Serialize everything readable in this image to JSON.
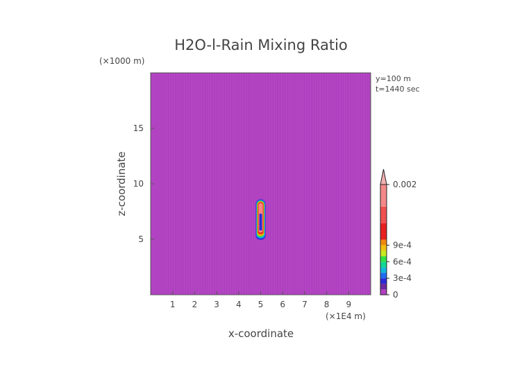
{
  "chart_data": {
    "type": "heatmap",
    "title": "H2O-l-Rain Mixing Ratio",
    "xlabel": "x-coordinate",
    "ylabel": "z-coordinate",
    "x_unit": "(×1E4 m)",
    "y_unit": "(×1000 m)",
    "annotations": [
      "y=100 m",
      "t=1440 sec"
    ],
    "xlim": [
      0,
      10
    ],
    "ylim": [
      0,
      20
    ],
    "x_ticks": [
      1,
      2,
      3,
      4,
      5,
      6,
      7,
      8,
      9
    ],
    "y_ticks": [
      5,
      10,
      15
    ],
    "grid": false,
    "background_color": "#b040c0",
    "colorbar": {
      "position": "right",
      "extend": "max",
      "tick_labels": [
        "0",
        "3e-4",
        "6e-4",
        "9e-4",
        "0.002"
      ],
      "tick_values": [
        0,
        0.0003,
        0.0006,
        0.0009,
        0.002
      ],
      "levels": [
        {
          "value": 0,
          "color": "#b040c0"
        },
        {
          "value": 0.0001,
          "color": "#6a2aa0"
        },
        {
          "value": 0.0002,
          "color": "#2a2ad8"
        },
        {
          "value": 0.0003,
          "color": "#1e6cf0"
        },
        {
          "value": 0.0004,
          "color": "#12b8d8"
        },
        {
          "value": 0.0005,
          "color": "#10d890"
        },
        {
          "value": 0.0006,
          "color": "#30e040"
        },
        {
          "value": 0.0007,
          "color": "#c8e820"
        },
        {
          "value": 0.0008,
          "color": "#f0c010"
        },
        {
          "value": 0.0009,
          "color": "#f08810"
        },
        {
          "value": 0.001,
          "color": "#e82020"
        },
        {
          "value": 0.0013,
          "color": "#f05050"
        },
        {
          "value": 0.0016,
          "color": "#f48888"
        },
        {
          "value": 0.002,
          "color": "#f4b0b0"
        }
      ]
    },
    "features": [
      {
        "name": "rain-core",
        "x_center": 5.0,
        "z_bottom": 5.3,
        "z_top": 8.6,
        "half_width_x": 0.22,
        "max_level": 0.0016
      }
    ]
  }
}
